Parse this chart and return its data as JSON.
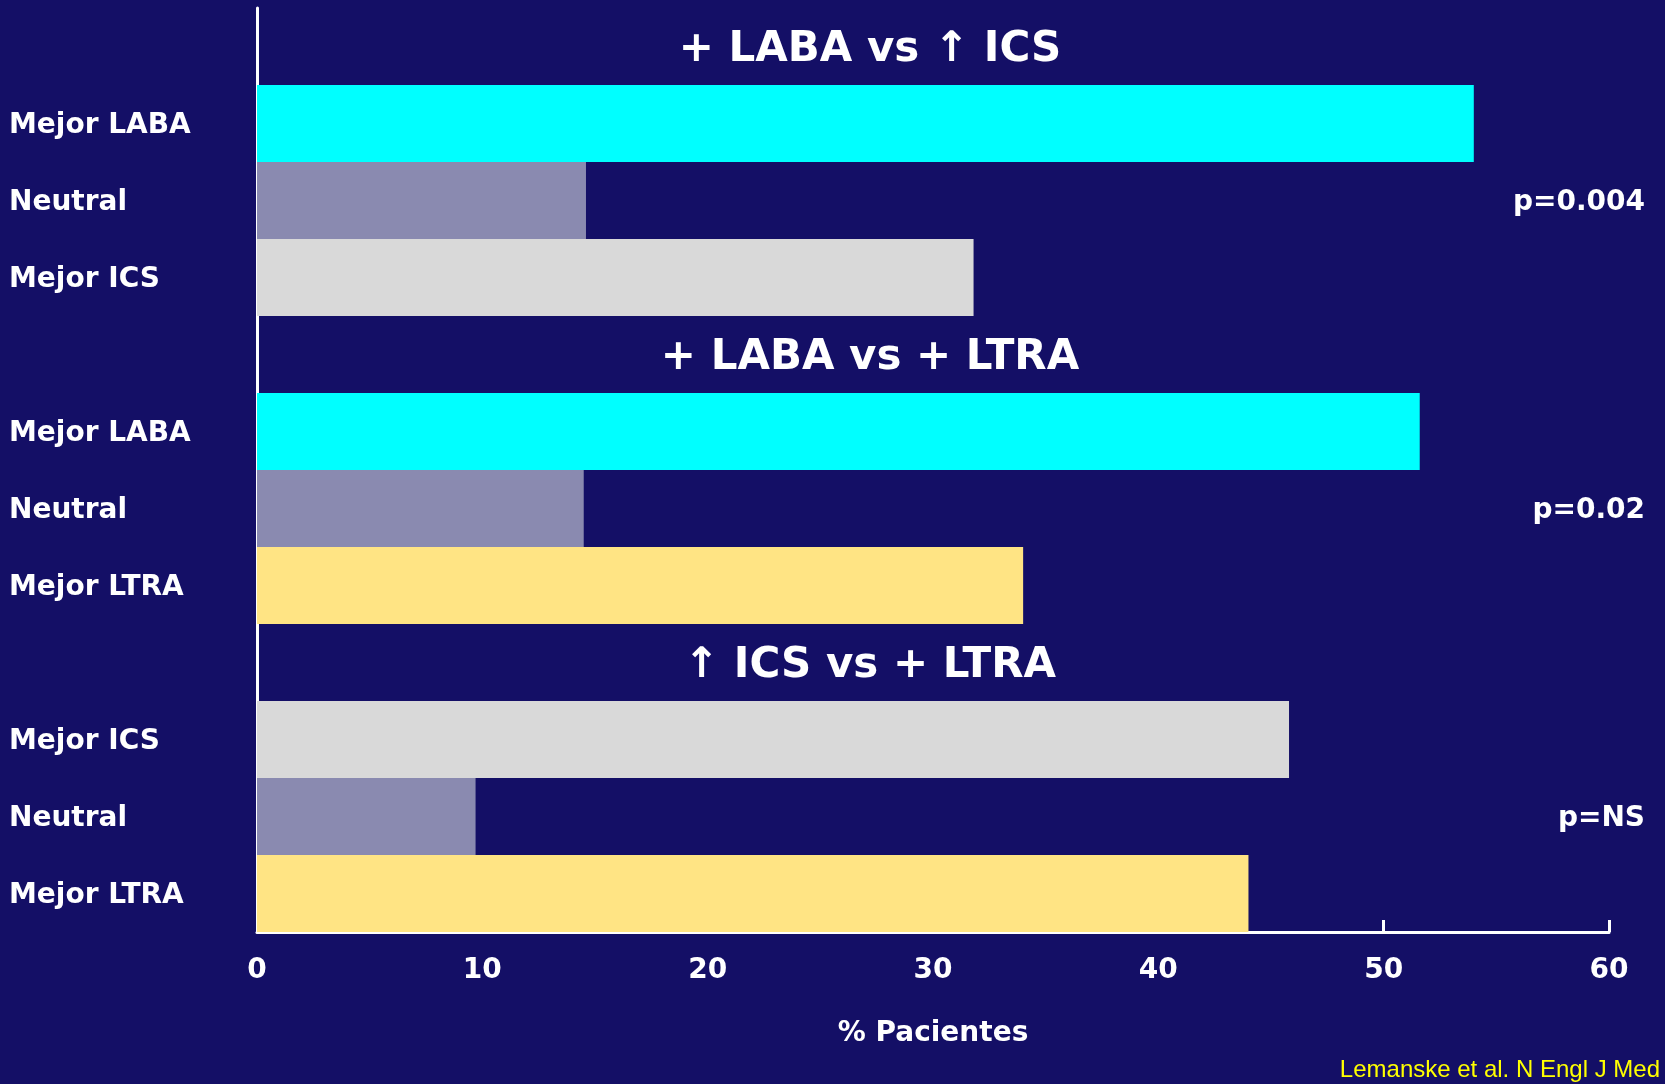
{
  "chart_data": {
    "type": "bar",
    "orientation": "horizontal",
    "categories": [
      null,
      "Mejor LABA",
      "Neutral",
      "Mejor ICS",
      null,
      "Mejor LABA",
      "Neutral",
      "Mejor LTRA",
      null,
      "Mejor ICS",
      "Neutral",
      "Mejor LTRA"
    ],
    "values": [
      null,
      54,
      14.6,
      31.8,
      null,
      51.6,
      14.5,
      34,
      null,
      45.8,
      9.7,
      44
    ],
    "colors": [
      "#00ffff",
      "#00ffff",
      "#8a8ab0",
      "#d9d9d9",
      "#00ffff",
      "#00ffff",
      "#8a8ab0",
      "#ffe484",
      "#d9d9d9",
      "#d9d9d9",
      "#8a8ab0",
      "#ffe484"
    ],
    "xlim": [
      0,
      60
    ],
    "xticks": [
      0,
      10,
      20,
      30,
      40,
      50,
      60
    ],
    "xlabel": "% Pacientes",
    "annotations": [
      "+ LABA vs ↑ ICS",
      "+ LABA vs + LTRA",
      "↑ ICS vs + LTRA",
      "p=0.004",
      "p=0.02",
      "p=NS",
      "Lemanske et al. N Engl J Med"
    ]
  }
}
